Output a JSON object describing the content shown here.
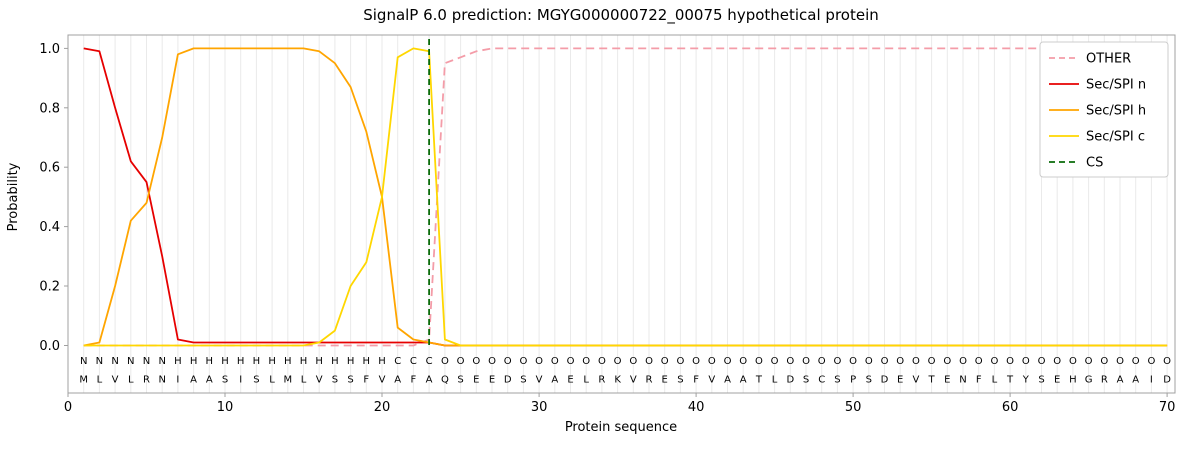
{
  "chart_data": {
    "type": "line",
    "title": "SignalP 6.0 prediction: MGYG000000722_00075 hypothetical protein",
    "xlabel": "Protein sequence",
    "ylabel": "Probability",
    "xlim": [
      0,
      70.5
    ],
    "ylim": [
      -0.16,
      1.045
    ],
    "x_ticks": [
      "0",
      "10",
      "20",
      "30",
      "40",
      "50",
      "60",
      "70"
    ],
    "y_ticks": [
      "0.0",
      "0.2",
      "0.4",
      "0.6",
      "0.8",
      "1.0"
    ],
    "grid": "vertical-line-per-residue",
    "legend_position": "upper-right",
    "sequence": "MLVLRNIAASISLMLVSSFVAFAQSEEDSVAELRKVRESFVAATLDSCSPSDEVTENFLTYSEHGRAAID",
    "sequence_color": "#1a1a1a",
    "regions": [
      {
        "label": "N",
        "start": 1,
        "end": 6,
        "color": "#e60000"
      },
      {
        "label": "H",
        "start": 7,
        "end": 20,
        "color": "#ffa500"
      },
      {
        "label": "C",
        "start": 21,
        "end": 23,
        "color": "#ffd700"
      },
      {
        "label": "O",
        "start": 24,
        "end": 70,
        "color": "#8f8f8f"
      }
    ],
    "cleavage_site": {
      "label": "CS",
      "position": 23,
      "color": "#0a6b0a"
    },
    "series": [
      {
        "name": "OTHER",
        "color": "#f49ca8",
        "dash": true,
        "values": [
          0,
          0,
          0,
          0,
          0,
          0,
          0,
          0,
          0,
          0,
          0,
          0,
          0,
          0,
          0,
          0,
          0,
          0,
          0,
          0,
          0,
          0,
          0.02,
          0.95,
          0.97,
          0.99,
          1.0,
          1.0,
          1.0,
          1.0,
          1.0,
          1.0,
          1.0,
          1.0,
          1.0,
          1.0,
          1.0,
          1.0,
          1.0,
          1.0,
          1.0,
          1.0,
          1.0,
          1.0,
          1.0,
          1.0,
          1.0,
          1.0,
          1.0,
          1.0,
          1.0,
          1.0,
          1.0,
          1.0,
          1.0,
          1.0,
          1.0,
          1.0,
          1.0,
          1.0,
          1.0,
          1.0,
          1.0,
          1.0,
          1.0,
          1.0,
          1.0,
          1.0,
          1.0,
          1.0
        ]
      },
      {
        "name": "Sec/SPI n",
        "color": "#e60000",
        "dash": false,
        "values": [
          1.0,
          0.99,
          0.8,
          0.62,
          0.55,
          0.3,
          0.02,
          0.01,
          0.01,
          0.01,
          0.01,
          0.01,
          0.01,
          0.01,
          0.01,
          0.01,
          0.01,
          0.01,
          0.01,
          0.01,
          0.01,
          0.01,
          0.01,
          0,
          0,
          0,
          0,
          0,
          0,
          0,
          0,
          0,
          0,
          0,
          0,
          0,
          0,
          0,
          0,
          0,
          0,
          0,
          0,
          0,
          0,
          0,
          0,
          0,
          0,
          0,
          0,
          0,
          0,
          0,
          0,
          0,
          0,
          0,
          0,
          0,
          0,
          0,
          0,
          0,
          0,
          0,
          0,
          0,
          0,
          0
        ]
      },
      {
        "name": "Sec/SPI h",
        "color": "#ffa500",
        "dash": false,
        "values": [
          0,
          0.01,
          0.2,
          0.42,
          0.48,
          0.7,
          0.98,
          1.0,
          1.0,
          1.0,
          1.0,
          1.0,
          1.0,
          1.0,
          1.0,
          0.99,
          0.95,
          0.87,
          0.72,
          0.5,
          0.06,
          0.02,
          0.01,
          0,
          0,
          0,
          0,
          0,
          0,
          0,
          0,
          0,
          0,
          0,
          0,
          0,
          0,
          0,
          0,
          0,
          0,
          0,
          0,
          0,
          0,
          0,
          0,
          0,
          0,
          0,
          0,
          0,
          0,
          0,
          0,
          0,
          0,
          0,
          0,
          0,
          0,
          0,
          0,
          0,
          0,
          0,
          0,
          0,
          0,
          0
        ]
      },
      {
        "name": "Sec/SPI c",
        "color": "#ffd700",
        "dash": false,
        "values": [
          0,
          0,
          0,
          0,
          0,
          0,
          0,
          0,
          0,
          0,
          0,
          0,
          0,
          0,
          0,
          0.01,
          0.05,
          0.2,
          0.28,
          0.5,
          0.97,
          1.0,
          0.99,
          0.02,
          0,
          0,
          0,
          0,
          0,
          0,
          0,
          0,
          0,
          0,
          0,
          0,
          0,
          0,
          0,
          0,
          0,
          0,
          0,
          0,
          0,
          0,
          0,
          0,
          0,
          0,
          0,
          0,
          0,
          0,
          0,
          0,
          0,
          0,
          0,
          0,
          0,
          0,
          0,
          0,
          0,
          0,
          0,
          0,
          0,
          0
        ]
      }
    ],
    "legend": [
      {
        "label": "OTHER",
        "color": "#f49ca8",
        "dash": true
      },
      {
        "label": "Sec/SPI n",
        "color": "#e60000",
        "dash": false
      },
      {
        "label": "Sec/SPI h",
        "color": "#ffa500",
        "dash": false
      },
      {
        "label": "Sec/SPI c",
        "color": "#ffd700",
        "dash": false
      },
      {
        "label": "CS",
        "color": "#0a6b0a",
        "dash": true
      }
    ],
    "colors": {
      "grid": "#eaeaea",
      "spine": "#a0a0a0",
      "tick_label": "#333333",
      "legend_border": "#cccccc",
      "legend_text": "#1a1a1a"
    }
  }
}
